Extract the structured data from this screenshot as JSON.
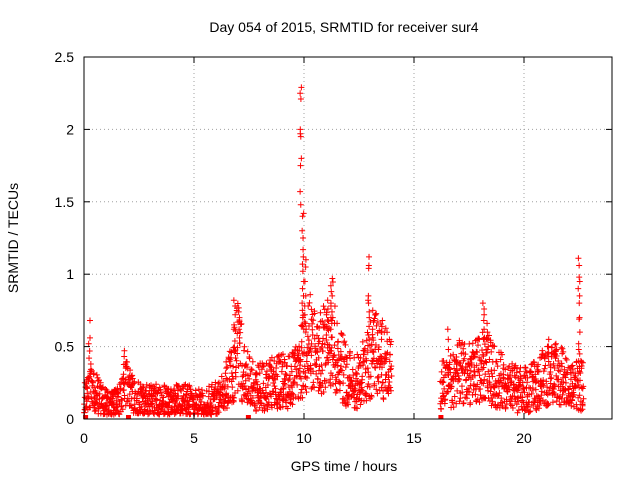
{
  "chart_data": {
    "type": "scatter",
    "title": "Day 054 of 2015, SRMTID for receiver sur4",
    "xlabel": "GPS time / hours",
    "ylabel": "SRMTID / TECUs",
    "xlim": [
      0,
      24
    ],
    "ylim": [
      0,
      2.5
    ],
    "grid": true,
    "marker": "plus",
    "color": "#ff0000",
    "x_ticks": [
      {
        "value": 0,
        "label": "0"
      },
      {
        "value": 5,
        "label": "5"
      },
      {
        "value": 10,
        "label": "10"
      },
      {
        "value": 15,
        "label": "15"
      },
      {
        "value": 20,
        "label": "20"
      }
    ],
    "y_ticks": [
      {
        "value": 0,
        "label": "0"
      },
      {
        "value": 0.5,
        "label": "0.5"
      },
      {
        "value": 1,
        "label": "1"
      },
      {
        "value": 1.5,
        "label": "1.5"
      },
      {
        "value": 2,
        "label": "2"
      },
      {
        "value": 2.5,
        "label": "2.5"
      }
    ],
    "trend": [
      [
        0.0,
        0.12
      ],
      [
        0.3,
        0.22
      ],
      [
        0.5,
        0.18
      ],
      [
        0.8,
        0.12
      ],
      [
        1.2,
        0.1
      ],
      [
        1.6,
        0.15
      ],
      [
        1.8,
        0.28
      ],
      [
        2.0,
        0.22
      ],
      [
        2.3,
        0.14
      ],
      [
        2.8,
        0.12
      ],
      [
        3.2,
        0.13
      ],
      [
        3.6,
        0.12
      ],
      [
        4.0,
        0.11
      ],
      [
        4.4,
        0.13
      ],
      [
        4.8,
        0.12
      ],
      [
        5.0,
        0.11
      ],
      [
        5.3,
        0.1
      ],
      [
        5.8,
        0.12
      ],
      [
        6.2,
        0.15
      ],
      [
        6.5,
        0.24
      ],
      [
        6.8,
        0.35
      ],
      [
        7.0,
        0.5
      ],
      [
        7.3,
        0.3
      ],
      [
        7.7,
        0.22
      ],
      [
        8.2,
        0.22
      ],
      [
        8.6,
        0.25
      ],
      [
        9.0,
        0.27
      ],
      [
        9.4,
        0.26
      ],
      [
        9.7,
        0.32
      ],
      [
        9.9,
        0.4
      ],
      [
        10.2,
        0.55
      ],
      [
        10.6,
        0.42
      ],
      [
        11.0,
        0.5
      ],
      [
        11.3,
        0.6
      ],
      [
        11.6,
        0.4
      ],
      [
        12.0,
        0.28
      ],
      [
        12.4,
        0.26
      ],
      [
        12.8,
        0.35
      ],
      [
        13.2,
        0.45
      ],
      [
        13.6,
        0.4
      ],
      [
        13.9,
        0.35
      ],
      [
        14.0,
        0.32
      ]
    ],
    "trend2": [
      [
        16.2,
        0.22
      ],
      [
        16.6,
        0.25
      ],
      [
        17.0,
        0.32
      ],
      [
        17.4,
        0.3
      ],
      [
        17.8,
        0.32
      ],
      [
        18.2,
        0.38
      ],
      [
        18.6,
        0.3
      ],
      [
        19.0,
        0.26
      ],
      [
        19.4,
        0.22
      ],
      [
        19.8,
        0.2
      ],
      [
        20.2,
        0.2
      ],
      [
        20.6,
        0.24
      ],
      [
        21.0,
        0.3
      ],
      [
        21.4,
        0.33
      ],
      [
        21.7,
        0.3
      ],
      [
        22.0,
        0.22
      ],
      [
        22.4,
        0.24
      ],
      [
        22.7,
        0.22
      ]
    ],
    "spikes": [
      {
        "x": 0.25,
        "values": [
          0.68,
          0.56,
          0.52,
          0.47,
          0.42
        ]
      },
      {
        "x": 6.85,
        "values": [
          0.82,
          0.78,
          0.72,
          0.65,
          0.62
        ]
      },
      {
        "x": 7.05,
        "values": [
          0.74,
          0.7,
          0.62,
          0.56
        ]
      },
      {
        "x": 9.75,
        "values": [
          0.47,
          0.44,
          0.41
        ]
      },
      {
        "x": 9.85,
        "values": [
          2.29,
          2.25,
          2.21,
          2.0,
          1.97,
          1.95,
          1.8,
          1.75,
          1.57,
          1.48
        ]
      },
      {
        "x": 9.95,
        "values": [
          1.42,
          1.4,
          1.3,
          1.25,
          1.17,
          1.12,
          1.07,
          1.02,
          0.95,
          0.9,
          0.85,
          0.8,
          0.75,
          0.7,
          0.65
        ]
      },
      {
        "x": 10.05,
        "values": [
          1.1,
          1.05,
          0.95,
          0.85,
          0.78,
          0.72,
          0.66,
          0.6
        ]
      },
      {
        "x": 11.25,
        "values": [
          0.97,
          0.92,
          0.88,
          0.85,
          0.8,
          0.78,
          0.74,
          0.7,
          0.66,
          0.62
        ]
      },
      {
        "x": 11.05,
        "values": [
          0.82,
          0.76,
          0.72,
          0.64,
          0.58
        ]
      },
      {
        "x": 12.95,
        "values": [
          1.12,
          1.06,
          1.04,
          0.85,
          0.82,
          0.8,
          0.74,
          0.7,
          0.64,
          0.58
        ]
      },
      {
        "x": 13.15,
        "values": [
          0.75,
          0.68,
          0.62,
          0.56
        ]
      },
      {
        "x": 13.55,
        "values": [
          0.68,
          0.64,
          0.6,
          0.55
        ]
      },
      {
        "x": 16.55,
        "values": [
          0.62,
          0.55,
          0.48
        ]
      },
      {
        "x": 18.15,
        "values": [
          0.8,
          0.76,
          0.72,
          0.68,
          0.62,
          0.55
        ]
      },
      {
        "x": 18.35,
        "values": [
          0.66,
          0.6,
          0.55,
          0.5
        ]
      },
      {
        "x": 21.1,
        "values": [
          0.55,
          0.5,
          0.46
        ]
      },
      {
        "x": 21.45,
        "values": [
          0.52,
          0.48,
          0.45,
          0.42
        ]
      },
      {
        "x": 22.5,
        "values": [
          1.11,
          1.06,
          0.98,
          0.95,
          0.9,
          0.85,
          0.8,
          0.7,
          0.69,
          0.6,
          0.52,
          0.48,
          0.45,
          0.4
        ]
      }
    ],
    "baseline_points": [
      {
        "x": 0.05,
        "y": 0.0
      },
      {
        "x": 2.0,
        "y": 0.0
      },
      {
        "x": 7.45,
        "y": 0.0
      },
      {
        "x": 16.2,
        "y": 0.0
      }
    ],
    "gap_hours": [
      14.0,
      16.2
    ]
  }
}
